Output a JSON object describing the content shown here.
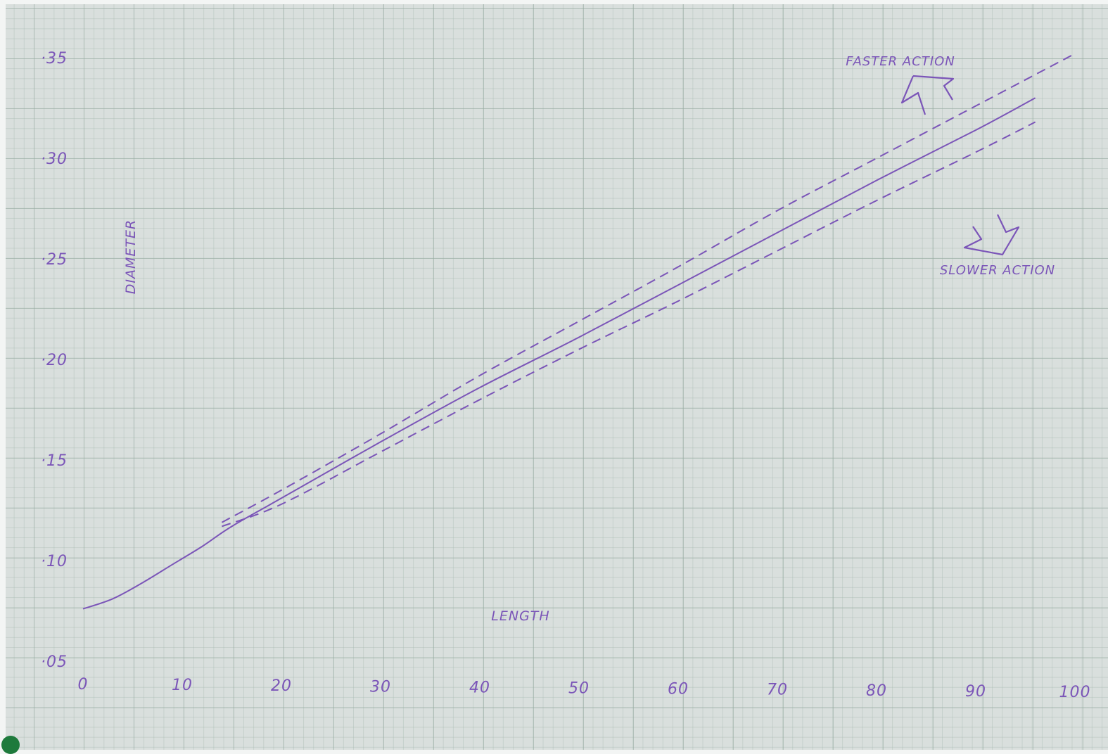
{
  "chart_data": {
    "type": "line",
    "title": "",
    "xlabel": "LENGTH",
    "ylabel": "DIAMETER",
    "xlim": [
      0,
      100
    ],
    "ylim": [
      0.05,
      0.35
    ],
    "x_ticks": [
      {
        "value": 0,
        "label": "0"
      },
      {
        "value": 10,
        "label": "10"
      },
      {
        "value": 20,
        "label": "20"
      },
      {
        "value": 30,
        "label": "30"
      },
      {
        "value": 40,
        "label": "40"
      },
      {
        "value": 50,
        "label": "50"
      },
      {
        "value": 60,
        "label": "60"
      },
      {
        "value": 70,
        "label": "70"
      },
      {
        "value": 80,
        "label": "80"
      },
      {
        "value": 90,
        "label": "90"
      },
      {
        "value": 100,
        "label": "100"
      }
    ],
    "y_ticks": [
      {
        "value": 0.05,
        "label": "·05"
      },
      {
        "value": 0.1,
        "label": "·10"
      },
      {
        "value": 0.15,
        "label": "·15"
      },
      {
        "value": 0.2,
        "label": "·20"
      },
      {
        "value": 0.25,
        "label": "·25"
      },
      {
        "value": 0.3,
        "label": "·30"
      },
      {
        "value": 0.35,
        "label": "·35"
      }
    ],
    "grid": true,
    "series": [
      {
        "style": "solid",
        "x": [
          0,
          3,
          6,
          9,
          12,
          15,
          20,
          30,
          40,
          50,
          60,
          70,
          80,
          90,
          96
        ],
        "values": [
          0.076,
          0.081,
          0.089,
          0.098,
          0.107,
          0.117,
          0.131,
          0.159,
          0.186,
          0.211,
          0.237,
          0.263,
          0.289,
          0.314,
          0.33
        ]
      },
      {
        "style": "dashed",
        "x": [
          14,
          20,
          30,
          40,
          50,
          60,
          70,
          80,
          90,
          100
        ],
        "values": [
          0.119,
          0.135,
          0.163,
          0.192,
          0.219,
          0.246,
          0.274,
          0.3,
          0.326,
          0.352
        ]
      },
      {
        "style": "dashed",
        "x": [
          14,
          20,
          30,
          40,
          50,
          60,
          70,
          80,
          90,
          96
        ],
        "values": [
          0.117,
          0.128,
          0.154,
          0.18,
          0.205,
          0.229,
          0.254,
          0.279,
          0.303,
          0.318
        ]
      }
    ],
    "annotations": [
      {
        "text": "FASTER ACTION",
        "arrow": "up-left"
      },
      {
        "text": "SLOWER ACTION",
        "arrow": "down-right"
      }
    ],
    "line_color": "#7b55b8"
  }
}
